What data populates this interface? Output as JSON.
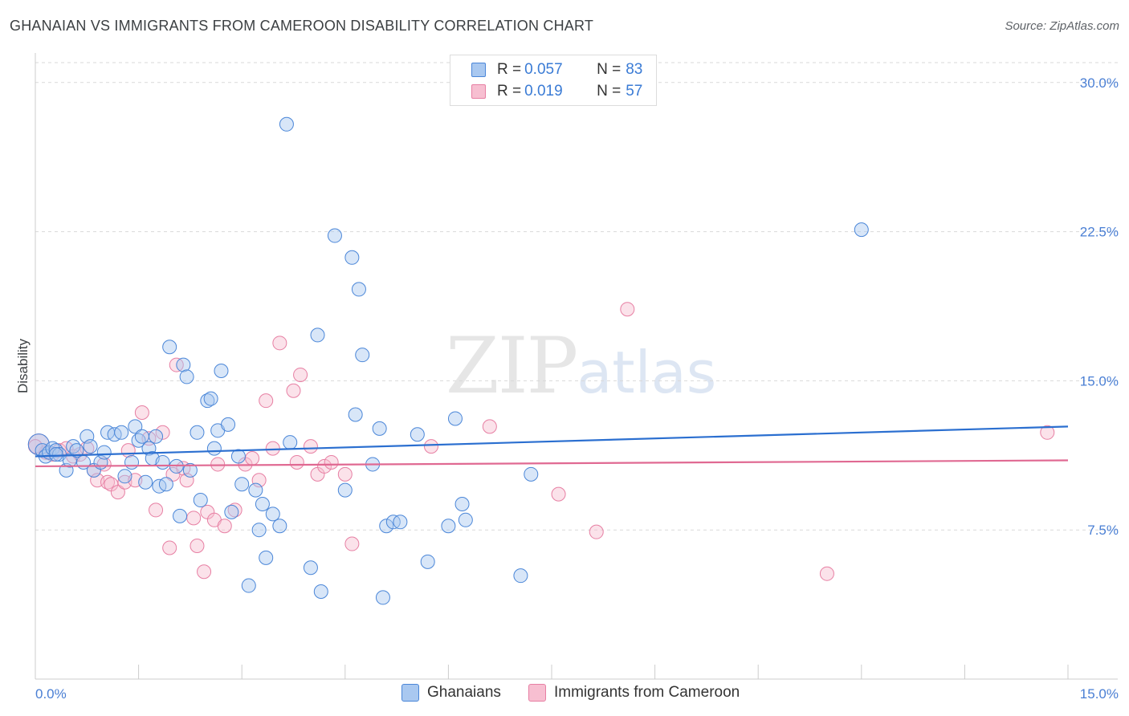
{
  "header": {
    "title": "GHANAIAN VS IMMIGRANTS FROM CAMEROON DISABILITY CORRELATION CHART",
    "source": "Source: ZipAtlas.com"
  },
  "watermark": {
    "zip": "ZIP",
    "atlas": "atlas"
  },
  "legend": {
    "rows": [
      {
        "r_label": "R = ",
        "r_value": "0.057",
        "n_label": "N = ",
        "n_value": "83"
      },
      {
        "r_label": "R = ",
        "r_value": "0.019",
        "n_label": "N = ",
        "n_value": "57"
      }
    ]
  },
  "colors": {
    "blue_fill": "#a9c8f0",
    "blue_stroke": "#4a86d8",
    "blue_line": "#2b6fd0",
    "pink_fill": "#f7bfd1",
    "pink_stroke": "#e77fa3",
    "pink_line": "#e06992",
    "grid": "#d9d9d9",
    "tick_text": "#4a7fd4"
  },
  "chart_data": {
    "type": "scatter",
    "title": "GHANAIAN VS IMMIGRANTS FROM CAMEROON DISABILITY CORRELATION CHART",
    "xlabel": "",
    "ylabel": "Disability",
    "xlim": [
      0,
      15
    ],
    "ylim": [
      0,
      31
    ],
    "x_tick_labels": [
      "0.0%",
      "15.0%"
    ],
    "y_ticks": [
      7.5,
      15.0,
      22.5,
      30.0
    ],
    "y_tick_labels": [
      "7.5%",
      "15.0%",
      "22.5%",
      "30.0%"
    ],
    "series": [
      {
        "name": "Ghanaians",
        "r": 0.057,
        "n": 83,
        "trend": {
          "x": [
            0,
            15
          ],
          "y": [
            11.2,
            12.7
          ]
        },
        "points": [
          [
            0.05,
            11.8
          ],
          [
            0.1,
            11.5
          ],
          [
            0.15,
            11.2
          ],
          [
            0.2,
            11.4
          ],
          [
            0.25,
            11.6
          ],
          [
            0.3,
            11.5
          ],
          [
            0.35,
            11.3
          ],
          [
            0.45,
            10.5
          ],
          [
            0.5,
            11.0
          ],
          [
            0.55,
            11.7
          ],
          [
            0.6,
            11.5
          ],
          [
            0.7,
            10.9
          ],
          [
            0.75,
            12.2
          ],
          [
            0.8,
            11.7
          ],
          [
            0.85,
            10.5
          ],
          [
            0.95,
            10.9
          ],
          [
            1.0,
            11.4
          ],
          [
            1.05,
            12.4
          ],
          [
            1.15,
            12.3
          ],
          [
            1.25,
            12.4
          ],
          [
            1.3,
            10.2
          ],
          [
            1.4,
            10.9
          ],
          [
            1.45,
            12.7
          ],
          [
            1.5,
            12.0
          ],
          [
            1.55,
            12.2
          ],
          [
            1.6,
            9.9
          ],
          [
            1.65,
            11.6
          ],
          [
            1.7,
            11.1
          ],
          [
            1.8,
            9.7
          ],
          [
            1.85,
            10.9
          ],
          [
            1.9,
            9.8
          ],
          [
            1.95,
            16.7
          ],
          [
            2.05,
            10.7
          ],
          [
            2.1,
            8.2
          ],
          [
            2.15,
            15.8
          ],
          [
            2.2,
            15.2
          ],
          [
            2.25,
            10.5
          ],
          [
            2.35,
            12.4
          ],
          [
            2.4,
            9.0
          ],
          [
            2.5,
            14.0
          ],
          [
            2.55,
            14.1
          ],
          [
            2.6,
            11.6
          ],
          [
            2.65,
            12.5
          ],
          [
            2.7,
            15.5
          ],
          [
            2.8,
            12.8
          ],
          [
            2.85,
            8.4
          ],
          [
            2.95,
            11.2
          ],
          [
            3.0,
            9.8
          ],
          [
            3.1,
            4.7
          ],
          [
            3.2,
            9.5
          ],
          [
            3.25,
            7.5
          ],
          [
            3.3,
            8.8
          ],
          [
            3.35,
            6.1
          ],
          [
            3.45,
            8.3
          ],
          [
            3.55,
            7.7
          ],
          [
            3.65,
            27.9
          ],
          [
            3.7,
            11.9
          ],
          [
            4.0,
            5.6
          ],
          [
            4.1,
            17.3
          ],
          [
            4.15,
            4.4
          ],
          [
            4.35,
            22.3
          ],
          [
            4.5,
            9.5
          ],
          [
            4.6,
            21.2
          ],
          [
            4.65,
            13.3
          ],
          [
            4.7,
            19.6
          ],
          [
            4.75,
            16.3
          ],
          [
            4.9,
            10.8
          ],
          [
            5.0,
            12.6
          ],
          [
            5.05,
            4.1
          ],
          [
            5.1,
            7.7
          ],
          [
            5.2,
            7.9
          ],
          [
            5.3,
            7.9
          ],
          [
            5.55,
            12.3
          ],
          [
            5.7,
            5.9
          ],
          [
            6.0,
            7.7
          ],
          [
            6.1,
            13.1
          ],
          [
            6.2,
            8.8
          ],
          [
            6.25,
            8.0
          ],
          [
            7.05,
            5.2
          ],
          [
            7.2,
            10.3
          ],
          [
            12.0,
            22.6
          ],
          [
            0.3,
            11.3
          ],
          [
            1.75,
            12.2
          ]
        ]
      },
      {
        "name": "Immigrants from Cameroon",
        "r": 0.019,
        "n": 57,
        "trend": {
          "x": [
            0,
            15
          ],
          "y": [
            10.7,
            11.0
          ]
        },
        "points": [
          [
            0.05,
            11.8
          ],
          [
            0.15,
            11.4
          ],
          [
            0.25,
            11.3
          ],
          [
            0.35,
            11.5
          ],
          [
            0.45,
            11.6
          ],
          [
            0.55,
            11.2
          ],
          [
            0.65,
            11.3
          ],
          [
            0.75,
            11.6
          ],
          [
            0.85,
            10.5
          ],
          [
            0.9,
            10.0
          ],
          [
            1.0,
            10.8
          ],
          [
            1.05,
            9.9
          ],
          [
            1.1,
            9.8
          ],
          [
            1.2,
            9.4
          ],
          [
            1.3,
            9.9
          ],
          [
            1.35,
            11.5
          ],
          [
            1.45,
            10.0
          ],
          [
            1.55,
            13.4
          ],
          [
            1.65,
            12.1
          ],
          [
            1.75,
            8.5
          ],
          [
            1.85,
            12.4
          ],
          [
            1.95,
            6.6
          ],
          [
            2.0,
            10.3
          ],
          [
            2.05,
            15.8
          ],
          [
            2.15,
            10.6
          ],
          [
            2.2,
            10.0
          ],
          [
            2.3,
            8.1
          ],
          [
            2.35,
            6.7
          ],
          [
            2.45,
            5.4
          ],
          [
            2.5,
            8.4
          ],
          [
            2.6,
            8.0
          ],
          [
            2.65,
            10.8
          ],
          [
            2.75,
            7.7
          ],
          [
            2.9,
            8.5
          ],
          [
            3.05,
            10.8
          ],
          [
            3.15,
            11.1
          ],
          [
            3.25,
            10.0
          ],
          [
            3.35,
            14.0
          ],
          [
            3.45,
            11.6
          ],
          [
            3.55,
            16.9
          ],
          [
            3.75,
            14.5
          ],
          [
            3.8,
            10.9
          ],
          [
            3.85,
            15.3
          ],
          [
            4.0,
            11.7
          ],
          [
            4.1,
            10.3
          ],
          [
            4.2,
            10.7
          ],
          [
            4.3,
            10.9
          ],
          [
            4.5,
            10.3
          ],
          [
            4.6,
            6.8
          ],
          [
            5.75,
            11.7
          ],
          [
            6.6,
            12.7
          ],
          [
            7.6,
            9.3
          ],
          [
            8.15,
            7.4
          ],
          [
            8.6,
            18.6
          ],
          [
            11.5,
            5.3
          ],
          [
            14.7,
            12.4
          ],
          [
            0.0,
            11.7
          ]
        ]
      }
    ]
  },
  "bottom_legend": [
    {
      "label": "Ghanaians"
    },
    {
      "label": "Immigrants from Cameroon"
    }
  ]
}
